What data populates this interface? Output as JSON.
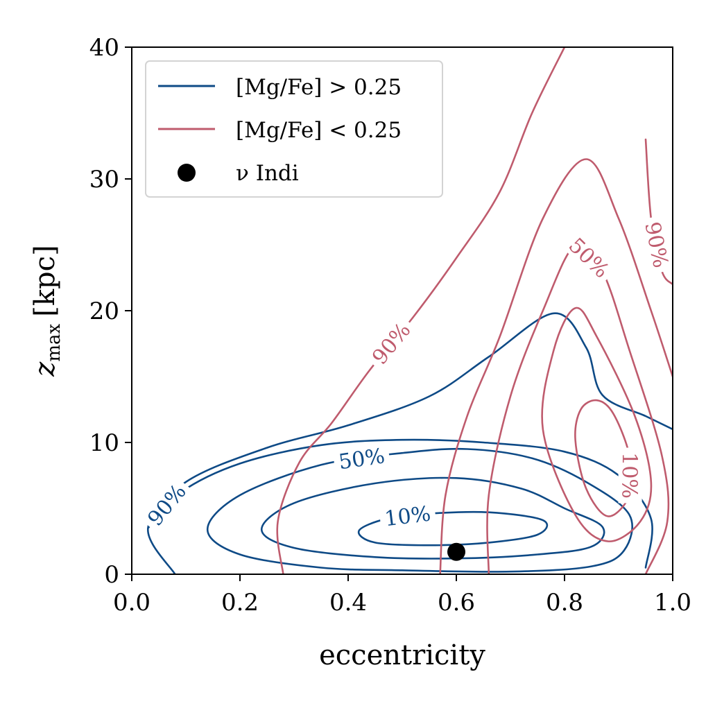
{
  "chart_data": {
    "type": "contour",
    "xlabel": "eccentricity",
    "ylabel": "z_max [kpc]",
    "ylabel_main": "z",
    "ylabel_sub": "max",
    "ylabel_unit": "[kpc]",
    "xlim": [
      0.0,
      1.0
    ],
    "ylim": [
      0,
      40
    ],
    "xticks": [
      "0.0",
      "0.2",
      "0.4",
      "0.6",
      "0.8",
      "1.0"
    ],
    "yticks": [
      "0",
      "10",
      "20",
      "30",
      "40"
    ],
    "grid": false,
    "legend_placement": "top-left",
    "colors": {
      "high_alpha": "#0e4a86",
      "low_alpha": "#bf5b6d",
      "point": "#000000"
    },
    "series": [
      {
        "name": "[Mg/Fe] > 0.25",
        "color": "#0e4a86",
        "levels": [
          {
            "label": "10%",
            "contour": [
              [
                0.42,
                3.3
              ],
              [
                0.47,
                4.2
              ],
              [
                0.55,
                4.6
              ],
              [
                0.66,
                4.7
              ],
              [
                0.76,
                4.1
              ],
              [
                0.75,
                3.0
              ],
              [
                0.66,
                2.4
              ],
              [
                0.55,
                2.2
              ],
              [
                0.45,
                2.4
              ],
              [
                0.42,
                3.3
              ]
            ]
          },
          {
            "label": "",
            "contour": [
              [
                0.24,
                3.4
              ],
              [
                0.3,
                5.4
              ],
              [
                0.45,
                6.9
              ],
              [
                0.6,
                7.3
              ],
              [
                0.72,
                6.5
              ],
              [
                0.8,
                5.0
              ],
              [
                0.87,
                3.6
              ],
              [
                0.85,
                2.1
              ],
              [
                0.75,
                1.5
              ],
              [
                0.6,
                1.2
              ],
              [
                0.45,
                1.3
              ],
              [
                0.3,
                2.0
              ],
              [
                0.24,
                3.4
              ]
            ]
          },
          {
            "label": "50%",
            "contour": [
              [
                0.14,
                3.4
              ],
              [
                0.2,
                6.0
              ],
              [
                0.35,
                8.3
              ],
              [
                0.5,
                9.2
              ],
              [
                0.62,
                9.5
              ],
              [
                0.74,
                8.8
              ],
              [
                0.84,
                7.0
              ],
              [
                0.92,
                4.5
              ],
              [
                0.91,
                1.8
              ],
              [
                0.85,
                0.6
              ],
              [
                0.7,
                0.2
              ],
              [
                0.5,
                0.3
              ],
              [
                0.35,
                0.5
              ],
              [
                0.2,
                1.5
              ],
              [
                0.14,
                3.4
              ]
            ]
          },
          {
            "label": "",
            "contour": [
              [
                0.03,
                3.5
              ],
              [
                0.09,
                6.2
              ],
              [
                0.2,
                8.4
              ],
              [
                0.35,
                9.8
              ],
              [
                0.5,
                10.2
              ],
              [
                0.65,
                10.0
              ],
              [
                0.8,
                9.3
              ],
              [
                0.9,
                7.5
              ],
              [
                0.96,
                4.2
              ],
              [
                0.95,
                0.5
              ]
            ]
          },
          {
            "label": "90%",
            "contour": [
              [
                0.08,
                0.0
              ],
              [
                0.03,
                3.5
              ],
              [
                0.1,
                7.0
              ],
              [
                0.25,
                9.6
              ],
              [
                0.4,
                11.3
              ],
              [
                0.55,
                13.5
              ],
              [
                0.66,
                16.5
              ],
              [
                0.78,
                19.8
              ],
              [
                0.84,
                17.2
              ],
              [
                0.87,
                13.6
              ],
              [
                0.95,
                12.0
              ],
              [
                1.0,
                11.0
              ]
            ]
          }
        ]
      },
      {
        "name": "[Mg/Fe] < 0.25",
        "color": "#bf5b6d",
        "levels": [
          {
            "label": "10%",
            "contour": [
              [
                0.82,
                10.2
              ],
              [
                0.83,
                12.5
              ],
              [
                0.86,
                13.2
              ],
              [
                0.89,
                12.2
              ],
              [
                0.92,
                9.0
              ],
              [
                0.92,
                6.0
              ],
              [
                0.88,
                4.4
              ],
              [
                0.84,
                6.5
              ],
              [
                0.82,
                10.2
              ]
            ]
          },
          {
            "label": "",
            "contour": [
              [
                0.76,
                11.0
              ],
              [
                0.78,
                17.0
              ],
              [
                0.82,
                20.2
              ],
              [
                0.86,
                18.0
              ],
              [
                0.93,
                12.0
              ],
              [
                0.96,
                7.0
              ],
              [
                0.94,
                4.0
              ],
              [
                0.88,
                2.5
              ],
              [
                0.82,
                4.5
              ],
              [
                0.76,
                11.0
              ]
            ]
          },
          {
            "label": "50%",
            "contour": [
              [
                0.66,
                0.0
              ],
              [
                0.66,
                6.0
              ],
              [
                0.7,
                13.5
              ],
              [
                0.76,
                20.0
              ],
              [
                0.82,
                25.0
              ],
              [
                0.87,
                23.0
              ],
              [
                0.92,
                17.0
              ],
              [
                0.98,
                9.0
              ],
              [
                0.99,
                4.0
              ],
              [
                0.95,
                0.0
              ]
            ]
          },
          {
            "label": "",
            "contour": [
              [
                0.57,
                0.0
              ],
              [
                0.58,
                6.0
              ],
              [
                0.62,
                12.0
              ],
              [
                0.68,
                18.0
              ],
              [
                0.76,
                27.0
              ],
              [
                0.84,
                31.5
              ],
              [
                0.9,
                27.0
              ],
              [
                0.96,
                20.0
              ],
              [
                1.0,
                15.0
              ]
            ]
          },
          {
            "label": "90%",
            "contour": [
              [
                0.28,
                0.0
              ],
              [
                0.27,
                4.0
              ],
              [
                0.31,
                8.5
              ],
              [
                0.37,
                11.5
              ],
              [
                0.44,
                15.5
              ],
              [
                0.52,
                19.5
              ],
              [
                0.6,
                24.0
              ],
              [
                0.68,
                29.0
              ],
              [
                0.74,
                35.0
              ],
              [
                0.8,
                40.0
              ]
            ]
          },
          {
            "label": "90%",
            "contour": [
              [
                0.95,
                33.0
              ],
              [
                0.96,
                27.0
              ],
              [
                0.98,
                23.0
              ],
              [
                1.0,
                22.0
              ]
            ]
          }
        ]
      }
    ],
    "points": [
      {
        "name": "ν Indi",
        "x": 0.6,
        "y": 1.7
      }
    ]
  },
  "legend": {
    "items": [
      {
        "label": "[Mg/Fe] > 0.25",
        "marker": "line",
        "color": "#0e4a86"
      },
      {
        "label": "[Mg/Fe] < 0.25",
        "marker": "line",
        "color": "#bf5b6d"
      },
      {
        "label": "ν Indi",
        "marker": "dot",
        "color": "#000000"
      }
    ]
  }
}
